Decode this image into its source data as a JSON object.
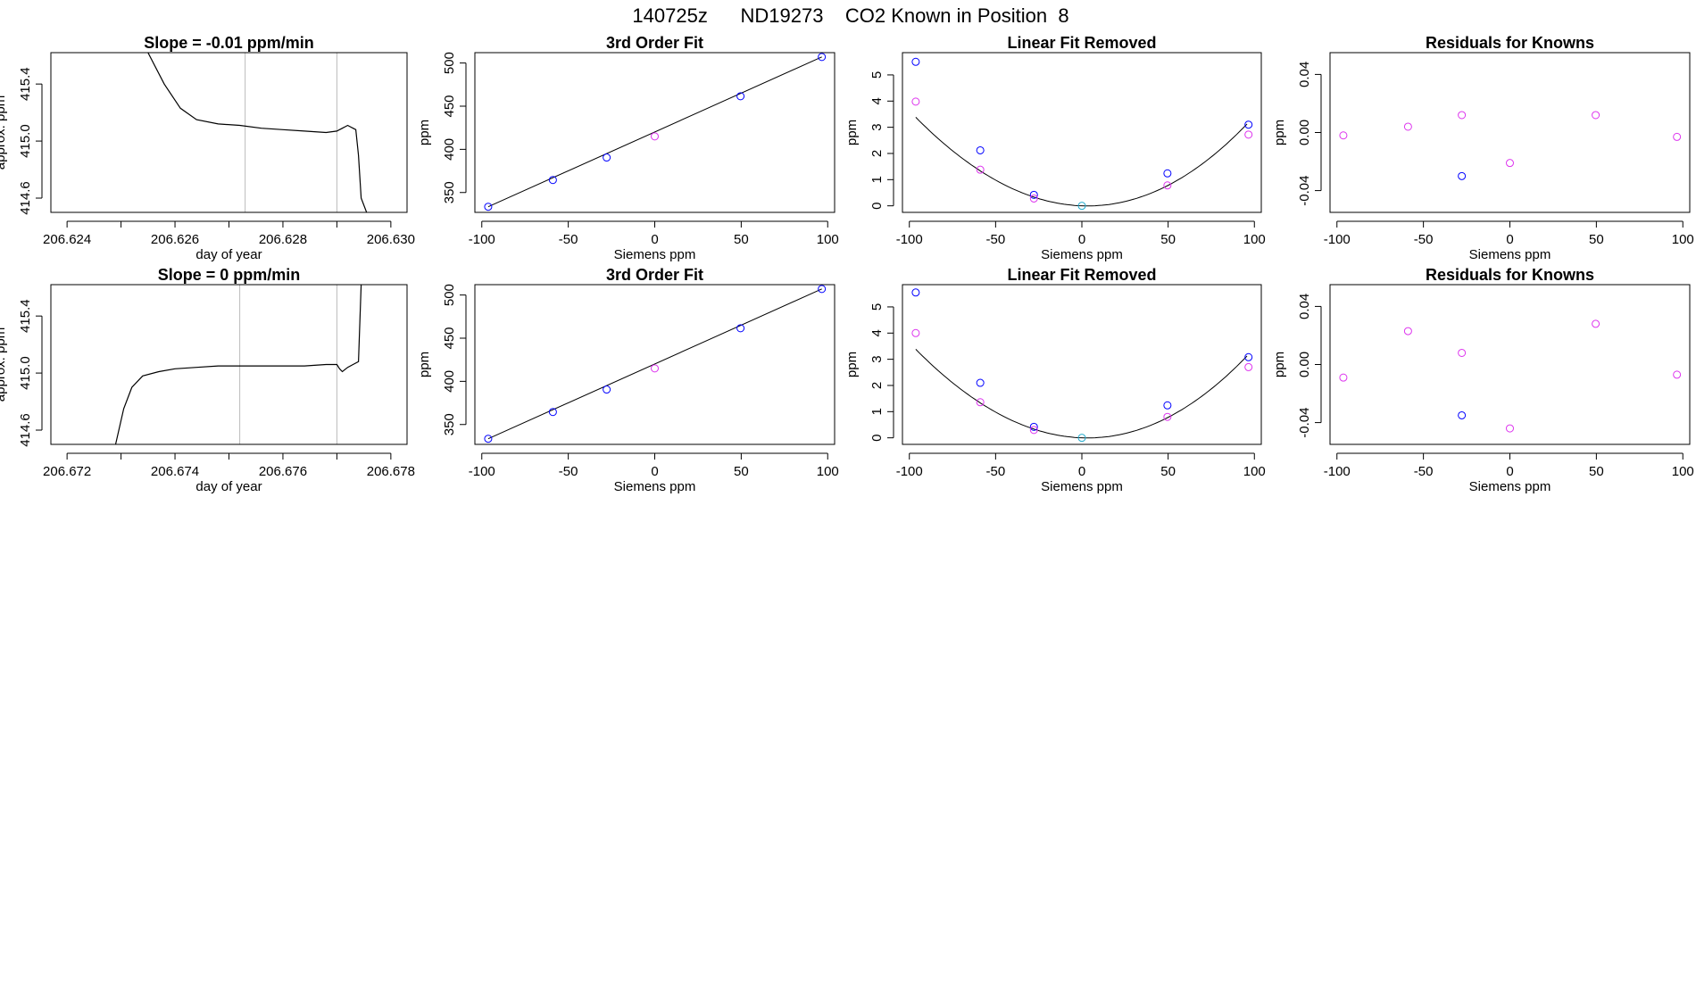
{
  "page_title": "140725z      ND19273    CO2 Known in Position  8",
  "colors": {
    "axis": "#000000",
    "trace": "#000000",
    "fit_line": "#000000",
    "blue_point": "#0000ff",
    "magenta_point": "#dd33ee",
    "cyan_point": "#22aacc",
    "gridline": "#bbbbbb"
  },
  "chart_data": [
    {
      "type": "line",
      "title": "Slope =  -0.01  ppm/min",
      "xlabel": "day of year",
      "ylabel": "approx. ppm",
      "xlim": [
        206.6237,
        206.6303
      ],
      "ylim": [
        414.5,
        415.62
      ],
      "xticks": [
        206.624,
        206.626,
        206.628,
        206.63
      ],
      "xtick_labels": [
        "206.624",
        "206.626",
        "206.628",
        "206.630"
      ],
      "xticks_minor": [
        206.625,
        206.627,
        206.629
      ],
      "yticks": [
        414.6,
        415.0,
        415.4
      ],
      "ytick_labels": [
        "414.6",
        "415.0",
        "415.4"
      ],
      "vlines": [
        206.6273,
        206.629
      ],
      "series": [
        {
          "x": [
            206.6255,
            206.6258,
            206.6261,
            206.6264,
            206.6268,
            206.6272,
            206.6276,
            206.628,
            206.6284,
            206.6288,
            206.629,
            206.6291,
            206.62915,
            206.6292,
            206.62925,
            206.6293,
            206.62935,
            206.6294,
            206.62945,
            206.62955
          ],
          "y": [
            415.62,
            415.4,
            415.23,
            415.15,
            415.12,
            415.11,
            415.09,
            415.08,
            415.07,
            415.06,
            415.07,
            415.09,
            415.1,
            415.11,
            415.1,
            415.09,
            415.08,
            414.9,
            414.6,
            414.5
          ]
        }
      ]
    },
    {
      "type": "scatter",
      "title": "3rd Order Fit",
      "xlabel": "Siemens ppm",
      "ylabel": "ppm",
      "xlim": [
        -104,
        104
      ],
      "ylim": [
        327,
        512
      ],
      "xticks": [
        -100,
        -50,
        0,
        50,
        100
      ],
      "xtick_labels": [
        "-100",
        "-50",
        "0",
        "50",
        "100"
      ],
      "yticks": [
        350,
        400,
        450,
        500
      ],
      "ytick_labels": [
        "350",
        "400",
        "450",
        "500"
      ],
      "fit_line": {
        "x": [
          -96.3,
          96.6
        ],
        "y": [
          333.5,
          507.0
        ]
      },
      "points": [
        {
          "x": -96.3,
          "y": 333.5,
          "color": "blue"
        },
        {
          "x": -58.9,
          "y": 364.5,
          "color": "blue"
        },
        {
          "x": -27.8,
          "y": 390.5,
          "color": "blue"
        },
        {
          "x": 0,
          "y": 415.0,
          "color": "magenta"
        },
        {
          "x": 49.6,
          "y": 461.5,
          "color": "blue"
        },
        {
          "x": 96.6,
          "y": 507.0,
          "color": "blue"
        }
      ]
    },
    {
      "type": "scatter",
      "title": "Linear Fit Removed",
      "xlabel": "Siemens ppm",
      "ylabel": "ppm",
      "xlim": [
        -104,
        104
      ],
      "ylim": [
        -0.25,
        5.85
      ],
      "xticks": [
        -100,
        -50,
        0,
        50,
        100
      ],
      "xtick_labels": [
        "-100",
        "-50",
        "0",
        "50",
        "100"
      ],
      "yticks": [
        0,
        1,
        2,
        3,
        4,
        5
      ],
      "ytick_labels": [
        "0",
        "1",
        "2",
        "3",
        "4",
        "5"
      ],
      "fit_curve": {
        "a": 0.000353,
        "b": -0.0023,
        "c": 1.26e-05
      },
      "points": [
        {
          "x": -96.3,
          "y": 5.5,
          "color": "blue"
        },
        {
          "x": -96.3,
          "y": 3.98,
          "color": "magenta"
        },
        {
          "x": -58.9,
          "y": 2.12,
          "color": "blue"
        },
        {
          "x": -58.9,
          "y": 1.38,
          "color": "magenta"
        },
        {
          "x": -27.8,
          "y": 0.42,
          "color": "blue"
        },
        {
          "x": -27.8,
          "y": 0.28,
          "color": "magenta"
        },
        {
          "x": 0,
          "y": 0.0,
          "color": "cyan"
        },
        {
          "x": 49.6,
          "y": 1.24,
          "color": "blue"
        },
        {
          "x": 49.6,
          "y": 0.78,
          "color": "magenta"
        },
        {
          "x": 96.6,
          "y": 3.1,
          "color": "blue"
        },
        {
          "x": 96.6,
          "y": 2.72,
          "color": "magenta"
        }
      ]
    },
    {
      "type": "scatter",
      "title": "Residuals for Knowns",
      "xlabel": "Siemens ppm",
      "ylabel": "ppm",
      "xlim": [
        -104,
        104
      ],
      "ylim": [
        -0.055,
        0.055
      ],
      "xticks": [
        -100,
        -50,
        0,
        50,
        100
      ],
      "xtick_labels": [
        "-100",
        "-50",
        "0",
        "50",
        "100"
      ],
      "yticks": [
        -0.04,
        0.0,
        0.04
      ],
      "ytick_labels": [
        "-0.04",
        "0.00",
        "0.04"
      ],
      "points": [
        {
          "x": -96.3,
          "y": -0.002,
          "color": "magenta"
        },
        {
          "x": -58.9,
          "y": 0.004,
          "color": "magenta"
        },
        {
          "x": -27.8,
          "y": 0.012,
          "color": "magenta"
        },
        {
          "x": -27.8,
          "y": -0.03,
          "color": "blue"
        },
        {
          "x": 0,
          "y": -0.021,
          "color": "magenta"
        },
        {
          "x": 49.6,
          "y": 0.012,
          "color": "magenta"
        },
        {
          "x": 96.6,
          "y": -0.003,
          "color": "magenta"
        }
      ]
    },
    {
      "type": "line",
      "title": "Slope =  0  ppm/min",
      "xlabel": "day of year",
      "ylabel": "approx. ppm",
      "xlim": [
        206.6717,
        206.6783
      ],
      "ylim": [
        414.5,
        415.62
      ],
      "xticks": [
        206.672,
        206.674,
        206.676,
        206.678
      ],
      "xtick_labels": [
        "206.672",
        "206.674",
        "206.676",
        "206.678"
      ],
      "xticks_minor": [
        206.673,
        206.675,
        206.677
      ],
      "yticks": [
        414.6,
        415.0,
        415.4
      ],
      "ytick_labels": [
        "414.6",
        "415.0",
        "415.4"
      ],
      "vlines": [
        206.6752,
        206.677
      ],
      "series": [
        {
          "x": [
            206.6729,
            206.67305,
            206.6732,
            206.6734,
            206.6737,
            206.674,
            206.6744,
            206.6748,
            206.6752,
            206.6756,
            206.676,
            206.6764,
            206.6768,
            206.677,
            206.67705,
            206.6771,
            206.6772,
            206.6773,
            206.6774,
            206.67745
          ],
          "y": [
            414.5,
            414.75,
            414.9,
            414.98,
            415.01,
            415.03,
            415.04,
            415.05,
            415.05,
            415.05,
            415.05,
            415.05,
            415.06,
            415.06,
            415.03,
            415.01,
            415.04,
            415.06,
            415.08,
            415.62
          ]
        }
      ]
    },
    {
      "type": "scatter",
      "title": "3rd Order Fit",
      "xlabel": "Siemens ppm",
      "ylabel": "ppm",
      "xlim": [
        -104,
        104
      ],
      "ylim": [
        327,
        512
      ],
      "xticks": [
        -100,
        -50,
        0,
        50,
        100
      ],
      "xtick_labels": [
        "-100",
        "-50",
        "0",
        "50",
        "100"
      ],
      "yticks": [
        350,
        400,
        450,
        500
      ],
      "ytick_labels": [
        "350",
        "400",
        "450",
        "500"
      ],
      "fit_line": {
        "x": [
          -96.3,
          96.6
        ],
        "y": [
          333.5,
          507.0
        ]
      },
      "points": [
        {
          "x": -96.3,
          "y": 333.5,
          "color": "blue"
        },
        {
          "x": -58.9,
          "y": 364.5,
          "color": "blue"
        },
        {
          "x": -27.8,
          "y": 390.5,
          "color": "blue"
        },
        {
          "x": 0,
          "y": 415.0,
          "color": "magenta"
        },
        {
          "x": 49.6,
          "y": 461.5,
          "color": "blue"
        },
        {
          "x": 96.6,
          "y": 507.0,
          "color": "blue"
        }
      ]
    },
    {
      "type": "scatter",
      "title": "Linear Fit Removed",
      "xlabel": "Siemens ppm",
      "ylabel": "ppm",
      "xlim": [
        -104,
        104
      ],
      "ylim": [
        -0.25,
        5.85
      ],
      "xticks": [
        -100,
        -50,
        0,
        50,
        100
      ],
      "xtick_labels": [
        "-100",
        "-50",
        "0",
        "50",
        "100"
      ],
      "yticks": [
        0,
        1,
        2,
        3,
        4,
        5
      ],
      "ytick_labels": [
        "0",
        "1",
        "2",
        "3",
        "4",
        "5"
      ],
      "fit_curve": {
        "a": 0.000353,
        "b": -0.0023,
        "c": 1.26e-05
      },
      "points": [
        {
          "x": -96.3,
          "y": 5.55,
          "color": "blue"
        },
        {
          "x": -96.3,
          "y": 4.0,
          "color": "magenta"
        },
        {
          "x": -58.9,
          "y": 2.1,
          "color": "blue"
        },
        {
          "x": -58.9,
          "y": 1.36,
          "color": "magenta"
        },
        {
          "x": -27.8,
          "y": 0.42,
          "color": "blue"
        },
        {
          "x": -27.8,
          "y": 0.3,
          "color": "magenta"
        },
        {
          "x": 0,
          "y": 0.0,
          "color": "cyan"
        },
        {
          "x": 49.6,
          "y": 1.24,
          "color": "blue"
        },
        {
          "x": 49.6,
          "y": 0.8,
          "color": "magenta"
        },
        {
          "x": 96.6,
          "y": 3.08,
          "color": "blue"
        },
        {
          "x": 96.6,
          "y": 2.7,
          "color": "magenta"
        }
      ]
    },
    {
      "type": "scatter",
      "title": "Residuals for Knowns",
      "xlabel": "Siemens ppm",
      "ylabel": "ppm",
      "xlim": [
        -104,
        104
      ],
      "ylim": [
        -0.055,
        0.055
      ],
      "xticks": [
        -100,
        -50,
        0,
        50,
        100
      ],
      "xtick_labels": [
        "-100",
        "-50",
        "0",
        "50",
        "100"
      ],
      "yticks": [
        -0.04,
        0.0,
        0.04
      ],
      "ytick_labels": [
        "-0.04",
        "0.00",
        "0.04"
      ],
      "points": [
        {
          "x": -96.3,
          "y": -0.009,
          "color": "magenta"
        },
        {
          "x": -58.9,
          "y": 0.023,
          "color": "magenta"
        },
        {
          "x": -27.8,
          "y": 0.008,
          "color": "magenta"
        },
        {
          "x": -27.8,
          "y": -0.035,
          "color": "blue"
        },
        {
          "x": 0,
          "y": -0.044,
          "color": "magenta"
        },
        {
          "x": 49.6,
          "y": 0.028,
          "color": "magenta"
        },
        {
          "x": 96.6,
          "y": -0.007,
          "color": "magenta"
        }
      ]
    }
  ]
}
